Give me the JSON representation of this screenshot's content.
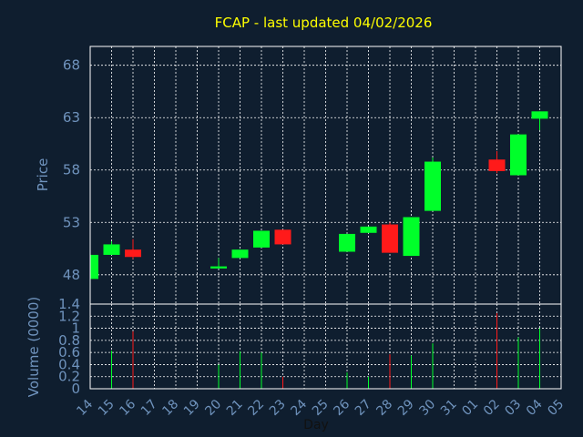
{
  "chart_data": {
    "type": "candlestick",
    "title": "FCAP - last updated 04/02/2026",
    "xlabel": "Day",
    "colors": {
      "background": "#0f1e2f",
      "frame": "#ffffff",
      "grid": "#ffffff",
      "up": "#00ff2a",
      "down": "#ff1a1a",
      "title": "#ffff00",
      "axis_text": "#6f93bd"
    },
    "x_ticks": [
      "14",
      "15",
      "16",
      "17",
      "18",
      "19",
      "20",
      "21",
      "22",
      "23",
      "24",
      "25",
      "26",
      "27",
      "28",
      "29",
      "30",
      "31",
      "01",
      "02",
      "03",
      "04",
      "05"
    ],
    "price_panel": {
      "ylabel": "Price",
      "ylim": [
        45.2,
        69.8
      ],
      "yticks": [
        48,
        53,
        58,
        63,
        68
      ],
      "grid": true
    },
    "volume_panel": {
      "ylabel": "Volume (0000)",
      "ylim": [
        0,
        1.4
      ],
      "yticks": [
        0,
        0.2,
        0.4,
        0.6,
        0.8,
        1,
        1.2,
        1.4
      ],
      "ytick_labels": [
        "0",
        "0.2",
        "0.4",
        "0.6",
        "0.8",
        "1",
        "1.2",
        "1.4"
      ],
      "grid": true
    },
    "candles": [
      {
        "day": "14",
        "open": 47.6,
        "close": 49.9,
        "high": 49.9,
        "low": 47.6,
        "volume": 0.0
      },
      {
        "day": "15",
        "open": 49.9,
        "close": 50.9,
        "high": 51.2,
        "low": 49.9,
        "volume": 0.63
      },
      {
        "day": "16",
        "open": 50.4,
        "close": 49.7,
        "high": 51.4,
        "low": 49.5,
        "volume": 0.95
      },
      {
        "day": "20",
        "open": 48.6,
        "close": 48.8,
        "high": 49.6,
        "low": 48.6,
        "volume": 0.4
      },
      {
        "day": "21",
        "open": 49.6,
        "close": 50.4,
        "high": 50.4,
        "low": 49.6,
        "volume": 0.62
      },
      {
        "day": "22",
        "open": 50.6,
        "close": 52.2,
        "high": 52.2,
        "low": 50.6,
        "volume": 0.6
      },
      {
        "day": "23",
        "open": 52.3,
        "close": 50.9,
        "high": 52.3,
        "low": 50.9,
        "volume": 0.2
      },
      {
        "day": "26",
        "open": 50.2,
        "close": 51.9,
        "high": 51.9,
        "low": 50.2,
        "volume": 0.27
      },
      {
        "day": "27",
        "open": 52.0,
        "close": 52.6,
        "high": 52.6,
        "low": 52.0,
        "volume": 0.2
      },
      {
        "day": "28",
        "open": 52.8,
        "close": 50.1,
        "high": 53.0,
        "low": 50.1,
        "volume": 0.57
      },
      {
        "day": "29",
        "open": 49.8,
        "close": 53.5,
        "high": 53.5,
        "low": 49.8,
        "volume": 0.55
      },
      {
        "day": "30",
        "open": 54.1,
        "close": 58.8,
        "high": 59.2,
        "low": 54.1,
        "volume": 0.75
      },
      {
        "day": "02",
        "open": 59.0,
        "close": 57.9,
        "high": 59.8,
        "low": 57.7,
        "volume": 1.25
      },
      {
        "day": "03",
        "open": 57.5,
        "close": 61.4,
        "high": 61.4,
        "low": 57.5,
        "volume": 0.85
      },
      {
        "day": "04",
        "open": 62.9,
        "close": 63.6,
        "high": 63.6,
        "low": 61.8,
        "volume": 1.0
      }
    ]
  }
}
